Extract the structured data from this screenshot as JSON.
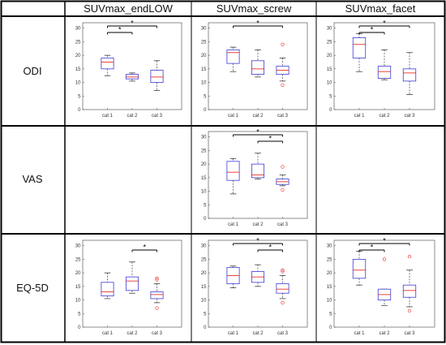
{
  "columns": [
    "SUVmax_endLOW",
    "SUVmax_screw",
    "SUVmax_facet"
  ],
  "rows": [
    "ODI",
    "VAS",
    "EQ-5D"
  ],
  "colors": {
    "box": "#3b3bd6",
    "median": "#e8302a",
    "outlier": "#e8302a",
    "whisker": "#222222",
    "frame": "#000000"
  },
  "chart_data": [
    {
      "type": "box",
      "row": "ODI",
      "column": "SUVmax_endLOW",
      "categories": [
        "cat 1",
        "cat 2",
        "cat 3"
      ],
      "yticks": [
        0,
        5,
        10,
        15,
        20,
        25,
        30
      ],
      "ylim": [
        0,
        32
      ],
      "boxes": [
        {
          "min": 12.5,
          "q1": 15,
          "median": 17.5,
          "q3": 19,
          "max": 20,
          "outliers": []
        },
        {
          "min": 10.5,
          "q1": 11.3,
          "median": 12,
          "q3": 13,
          "max": 13.5,
          "outliers": []
        },
        {
          "min": 7,
          "q1": 10,
          "median": 12,
          "q3": 14.5,
          "max": 18,
          "outliers": []
        }
      ],
      "significance": [
        {
          "from": 0,
          "to": 1,
          "label": "*",
          "level": 1
        },
        {
          "from": 0,
          "to": 2,
          "label": "*",
          "level": 2
        }
      ]
    },
    {
      "type": "box",
      "row": "ODI",
      "column": "SUVmax_screw",
      "categories": [
        "cat 1",
        "cat 2",
        "cat 3"
      ],
      "yticks": [
        0,
        5,
        10,
        15,
        20,
        25,
        30
      ],
      "ylim": [
        0,
        32
      ],
      "boxes": [
        {
          "min": 14,
          "q1": 17,
          "median": 21,
          "q3": 22,
          "max": 23,
          "outliers": []
        },
        {
          "min": 12,
          "q1": 13,
          "median": 15,
          "q3": 18,
          "max": 22,
          "outliers": []
        },
        {
          "min": 10.5,
          "q1": 13,
          "median": 14.5,
          "q3": 16,
          "max": 19,
          "outliers": [
            24,
            9
          ]
        }
      ],
      "significance": [
        {
          "from": 0,
          "to": 2,
          "label": "*",
          "level": 2
        }
      ]
    },
    {
      "type": "box",
      "row": "ODI",
      "column": "SUVmax_facet",
      "categories": [
        "cat 1",
        "cat 2",
        "cat 3"
      ],
      "yticks": [
        0,
        5,
        10,
        15,
        20,
        25,
        30
      ],
      "ylim": [
        0,
        32
      ],
      "boxes": [
        {
          "min": 14,
          "q1": 19,
          "median": 24,
          "q3": 26.5,
          "max": 28,
          "outliers": []
        },
        {
          "min": 11,
          "q1": 11.5,
          "median": 14,
          "q3": 16,
          "max": 22,
          "outliers": []
        },
        {
          "min": 5.5,
          "q1": 10.5,
          "median": 13.5,
          "q3": 15,
          "max": 21,
          "outliers": []
        }
      ],
      "significance": [
        {
          "from": 0,
          "to": 1,
          "label": "*",
          "level": 1
        },
        {
          "from": 0,
          "to": 2,
          "label": "*",
          "level": 2
        }
      ]
    },
    {
      "type": "box",
      "row": "VAS",
      "column": "SUVmax_screw",
      "categories": [
        "cat 1",
        "cat 2",
        "cat 3"
      ],
      "yticks": [
        0,
        5,
        10,
        15,
        20,
        25,
        30
      ],
      "ylim": [
        0,
        32
      ],
      "boxes": [
        {
          "min": 9,
          "q1": 14,
          "median": 17,
          "q3": 21,
          "max": 22,
          "outliers": []
        },
        {
          "min": 14.5,
          "q1": 15,
          "median": 16,
          "q3": 20,
          "max": 24,
          "outliers": []
        },
        {
          "min": 12,
          "q1": 12.5,
          "median": 13.5,
          "q3": 14.5,
          "max": 16,
          "outliers": [
            19,
            10.5
          ]
        }
      ],
      "significance": [
        {
          "from": 1,
          "to": 2,
          "label": "*",
          "level": 1
        },
        {
          "from": 0,
          "to": 2,
          "label": "*",
          "level": 2
        }
      ]
    },
    {
      "type": "box",
      "row": "EQ-5D",
      "column": "SUVmax_endLOW",
      "categories": [
        "cat 1",
        "cat 2",
        "cat 3"
      ],
      "yticks": [
        0,
        5,
        10,
        15,
        20,
        25,
        30
      ],
      "ylim": [
        0,
        32
      ],
      "boxes": [
        {
          "min": 10.5,
          "q1": 11.5,
          "median": 13,
          "q3": 16.5,
          "max": 20,
          "outliers": []
        },
        {
          "min": 12.5,
          "q1": 13.5,
          "median": 17,
          "q3": 18.5,
          "max": 24,
          "outliers": []
        },
        {
          "min": 9,
          "q1": 10.5,
          "median": 12,
          "q3": 13,
          "max": 16,
          "outliers": [
            18,
            17.5,
            7
          ]
        }
      ],
      "significance": [
        {
          "from": 1,
          "to": 2,
          "label": "*",
          "level": 1
        }
      ]
    },
    {
      "type": "box",
      "row": "EQ-5D",
      "column": "SUVmax_screw",
      "categories": [
        "cat 1",
        "cat 2",
        "cat 3"
      ],
      "yticks": [
        0,
        5,
        10,
        15,
        20,
        25,
        30
      ],
      "ylim": [
        0,
        32
      ],
      "boxes": [
        {
          "min": 14.5,
          "q1": 16,
          "median": 19,
          "q3": 22,
          "max": 22.5,
          "outliers": []
        },
        {
          "min": 15,
          "q1": 16.5,
          "median": 18.5,
          "q3": 20.5,
          "max": 23,
          "outliers": []
        },
        {
          "min": 10.5,
          "q1": 12.5,
          "median": 14,
          "q3": 16,
          "max": 19,
          "outliers": [
            21,
            20.5,
            9
          ]
        }
      ],
      "significance": [
        {
          "from": 1,
          "to": 2,
          "label": "*",
          "level": 1
        },
        {
          "from": 0,
          "to": 2,
          "label": "*",
          "level": 2
        }
      ]
    },
    {
      "type": "box",
      "row": "EQ-5D",
      "column": "SUVmax_facet",
      "categories": [
        "cat 1",
        "cat 2",
        "cat 3"
      ],
      "yticks": [
        0,
        5,
        10,
        15,
        20,
        25,
        30
      ],
      "ylim": [
        0,
        32
      ],
      "boxes": [
        {
          "min": 15.5,
          "q1": 18,
          "median": 21,
          "q3": 25,
          "max": 28,
          "outliers": []
        },
        {
          "min": 8,
          "q1": 10,
          "median": 12,
          "q3": 14,
          "max": 14,
          "outliers": [
            25
          ]
        },
        {
          "min": 7.5,
          "q1": 11,
          "median": 13.5,
          "q3": 15.5,
          "max": 21,
          "outliers": [
            26,
            6
          ]
        }
      ],
      "significance": [
        {
          "from": 0,
          "to": 1,
          "label": "*",
          "level": 1
        },
        {
          "from": 0,
          "to": 2,
          "label": "*",
          "level": 2
        }
      ]
    }
  ]
}
